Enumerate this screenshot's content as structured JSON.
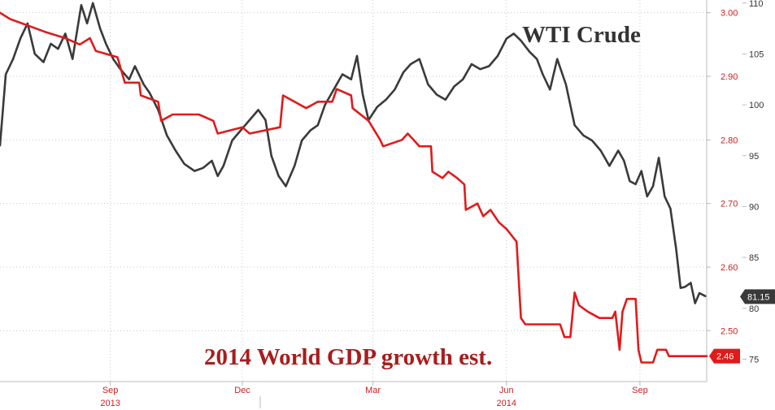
{
  "chart_data": {
    "type": "line",
    "annotations": {
      "wti": "WTI Crude",
      "gdp": "2014 World GDP growth est."
    },
    "x_axis": {
      "months": [
        "Sep",
        "Dec",
        "Mar",
        "Jun",
        "Sep"
      ],
      "years": [
        "2013",
        "2014"
      ],
      "range": [
        "2013-07-01",
        "2014-10-31"
      ]
    },
    "y_left": {
      "ticks": [
        "3.00",
        "2.90",
        "2.80",
        "2.70",
        "2.60",
        "2.50"
      ],
      "range": [
        2.42,
        3.02
      ],
      "color": "#cc1f1f"
    },
    "y_right": {
      "ticks": [
        "110",
        "105",
        "100",
        "95",
        "90",
        "85",
        "80",
        "75"
      ],
      "range": [
        72.8,
        110.3
      ],
      "color": "#333333"
    },
    "grid": true,
    "series": [
      {
        "name": "WTI Crude",
        "axis": "right",
        "color": "#3a3a3a",
        "last_value": "81.15",
        "points": [
          [
            "2013-07-01",
            96.0
          ],
          [
            "2013-07-05",
            103.0
          ],
          [
            "2013-07-10",
            104.5
          ],
          [
            "2013-07-15",
            106.5
          ],
          [
            "2013-07-20",
            108.0
          ],
          [
            "2013-07-25",
            105.0
          ],
          [
            "2013-07-31",
            104.2
          ],
          [
            "2013-08-05",
            106.0
          ],
          [
            "2013-08-10",
            105.5
          ],
          [
            "2013-08-15",
            107.0
          ],
          [
            "2013-08-20",
            104.5
          ],
          [
            "2013-08-26",
            109.8
          ],
          [
            "2013-08-30",
            108.0
          ],
          [
            "2013-09-03",
            110.0
          ],
          [
            "2013-09-08",
            107.5
          ],
          [
            "2013-09-12",
            106.0
          ],
          [
            "2013-09-17",
            104.5
          ],
          [
            "2013-09-22",
            103.5
          ],
          [
            "2013-09-28",
            102.5
          ],
          [
            "2013-10-02",
            103.8
          ],
          [
            "2013-10-08",
            102.0
          ],
          [
            "2013-10-12",
            101.2
          ],
          [
            "2013-10-18",
            99.5
          ],
          [
            "2013-10-24",
            97.0
          ],
          [
            "2013-10-30",
            95.5
          ],
          [
            "2013-11-05",
            94.2
          ],
          [
            "2013-11-12",
            93.5
          ],
          [
            "2013-11-18",
            93.8
          ],
          [
            "2013-11-24",
            94.5
          ],
          [
            "2013-11-28",
            93.0
          ],
          [
            "2013-12-02",
            94.0
          ],
          [
            "2013-12-08",
            96.5
          ],
          [
            "2013-12-14",
            97.5
          ],
          [
            "2013-12-20",
            98.5
          ],
          [
            "2013-12-26",
            99.5
          ],
          [
            "2013-12-31",
            98.5
          ],
          [
            "2014-01-04",
            95.0
          ],
          [
            "2014-01-09",
            93.0
          ],
          [
            "2014-01-14",
            92.0
          ],
          [
            "2014-01-20",
            94.0
          ],
          [
            "2014-01-25",
            96.5
          ],
          [
            "2014-01-31",
            97.5
          ],
          [
            "2014-02-05",
            98.0
          ],
          [
            "2014-02-10",
            100.0
          ],
          [
            "2014-02-16",
            101.5
          ],
          [
            "2014-02-22",
            103.0
          ],
          [
            "2014-02-28",
            102.5
          ],
          [
            "2014-03-04",
            104.8
          ],
          [
            "2014-03-08",
            101.0
          ],
          [
            "2014-03-12",
            98.5
          ],
          [
            "2014-03-18",
            99.8
          ],
          [
            "2014-03-24",
            100.5
          ],
          [
            "2014-03-30",
            101.5
          ],
          [
            "2014-04-05",
            103.2
          ],
          [
            "2014-04-10",
            104.0
          ],
          [
            "2014-04-16",
            104.5
          ],
          [
            "2014-04-22",
            102.0
          ],
          [
            "2014-04-28",
            101.0
          ],
          [
            "2014-05-04",
            100.5
          ],
          [
            "2014-05-10",
            101.8
          ],
          [
            "2014-05-16",
            102.5
          ],
          [
            "2014-05-22",
            104.0
          ],
          [
            "2014-05-28",
            103.5
          ],
          [
            "2014-06-03",
            103.8
          ],
          [
            "2014-06-09",
            104.8
          ],
          [
            "2014-06-15",
            106.5
          ],
          [
            "2014-06-20",
            107.0
          ],
          [
            "2014-06-25",
            106.3
          ],
          [
            "2014-07-01",
            105.2
          ],
          [
            "2014-07-06",
            104.5
          ],
          [
            "2014-07-10",
            103.0
          ],
          [
            "2014-07-15",
            101.5
          ],
          [
            "2014-07-20",
            104.5
          ],
          [
            "2014-07-26",
            102.0
          ],
          [
            "2014-08-01",
            98.0
          ],
          [
            "2014-08-07",
            97.0
          ],
          [
            "2014-08-13",
            96.5
          ],
          [
            "2014-08-19",
            95.5
          ],
          [
            "2014-08-25",
            94.0
          ],
          [
            "2014-08-31",
            95.5
          ],
          [
            "2014-09-04",
            94.5
          ],
          [
            "2014-09-08",
            92.5
          ],
          [
            "2014-09-12",
            92.2
          ],
          [
            "2014-09-16",
            93.5
          ],
          [
            "2014-09-20",
            91.0
          ],
          [
            "2014-09-24",
            92.0
          ],
          [
            "2014-09-28",
            94.8
          ],
          [
            "2014-10-02",
            91.0
          ],
          [
            "2014-10-06",
            89.8
          ],
          [
            "2014-10-10",
            85.8
          ],
          [
            "2014-10-13",
            82.0
          ],
          [
            "2014-10-16",
            82.1
          ],
          [
            "2014-10-20",
            82.5
          ],
          [
            "2014-10-23",
            80.5
          ],
          [
            "2014-10-26",
            81.5
          ],
          [
            "2014-10-30",
            81.2
          ]
        ]
      },
      {
        "name": "2014 World GDP growth est.",
        "axis": "left",
        "color": "#e01b1b",
        "last_value": "2.46",
        "points": [
          [
            "2013-07-01",
            3.0
          ],
          [
            "2013-07-08",
            2.99
          ],
          [
            "2013-07-20",
            2.98
          ],
          [
            "2013-08-01",
            2.97
          ],
          [
            "2013-08-15",
            2.96
          ],
          [
            "2013-08-25",
            2.95
          ],
          [
            "2013-09-01",
            2.96
          ],
          [
            "2013-09-05",
            2.94
          ],
          [
            "2013-09-20",
            2.93
          ],
          [
            "2013-09-25",
            2.89
          ],
          [
            "2013-10-05",
            2.89
          ],
          [
            "2013-10-06",
            2.87
          ],
          [
            "2013-10-18",
            2.86
          ],
          [
            "2013-10-20",
            2.83
          ],
          [
            "2013-10-28",
            2.84
          ],
          [
            "2013-11-01",
            2.84
          ],
          [
            "2013-11-15",
            2.84
          ],
          [
            "2013-11-25",
            2.83
          ],
          [
            "2013-11-28",
            2.81
          ],
          [
            "2013-12-15",
            2.82
          ],
          [
            "2013-12-20",
            2.81
          ],
          [
            "2014-01-10",
            2.82
          ],
          [
            "2014-01-12",
            2.87
          ],
          [
            "2014-01-20",
            2.86
          ],
          [
            "2014-01-28",
            2.85
          ],
          [
            "2014-02-05",
            2.86
          ],
          [
            "2014-02-15",
            2.86
          ],
          [
            "2014-02-18",
            2.88
          ],
          [
            "2014-02-28",
            2.87
          ],
          [
            "2014-03-01",
            2.85
          ],
          [
            "2014-03-12",
            2.83
          ],
          [
            "2014-03-20",
            2.8
          ],
          [
            "2014-03-22",
            2.79
          ],
          [
            "2014-04-04",
            2.8
          ],
          [
            "2014-04-08",
            2.81
          ],
          [
            "2014-04-12",
            2.8
          ],
          [
            "2014-04-16",
            2.79
          ],
          [
            "2014-04-24",
            2.79
          ],
          [
            "2014-04-25",
            2.75
          ],
          [
            "2014-05-02",
            2.74
          ],
          [
            "2014-05-06",
            2.75
          ],
          [
            "2014-05-12",
            2.74
          ],
          [
            "2014-05-17",
            2.73
          ],
          [
            "2014-05-18",
            2.69
          ],
          [
            "2014-05-26",
            2.7
          ],
          [
            "2014-05-30",
            2.68
          ],
          [
            "2014-06-04",
            2.69
          ],
          [
            "2014-06-10",
            2.67
          ],
          [
            "2014-06-15",
            2.66
          ],
          [
            "2014-06-22",
            2.64
          ],
          [
            "2014-06-25",
            2.52
          ],
          [
            "2014-06-28",
            2.51
          ],
          [
            "2014-07-08",
            2.51
          ],
          [
            "2014-07-22",
            2.51
          ],
          [
            "2014-07-25",
            2.49
          ],
          [
            "2014-07-29",
            2.49
          ],
          [
            "2014-08-01",
            2.56
          ],
          [
            "2014-08-04",
            2.54
          ],
          [
            "2014-08-10",
            2.53
          ],
          [
            "2014-08-18",
            2.52
          ],
          [
            "2014-08-27",
            2.52
          ],
          [
            "2014-08-29",
            2.53
          ],
          [
            "2014-09-01",
            2.47
          ],
          [
            "2014-09-03",
            2.53
          ],
          [
            "2014-09-06",
            2.55
          ],
          [
            "2014-09-12",
            2.55
          ],
          [
            "2014-09-14",
            2.47
          ],
          [
            "2014-09-16",
            2.45
          ],
          [
            "2014-09-24",
            2.45
          ],
          [
            "2014-09-27",
            2.47
          ],
          [
            "2014-10-03",
            2.47
          ],
          [
            "2014-10-05",
            2.46
          ],
          [
            "2014-10-31",
            2.46
          ]
        ]
      }
    ]
  }
}
